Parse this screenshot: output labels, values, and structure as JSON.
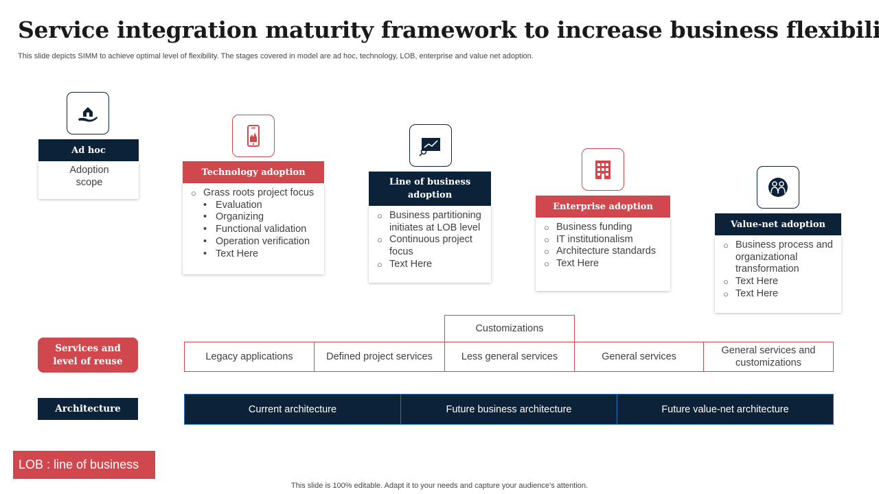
{
  "title": "Service integration maturity framework to increase business flexibility",
  "subtitle": "This slide depicts SIMM to achieve optimal level of flexibility. The stages covered in model are ad hoc, technology, LOB, enterprise and value net adoption.",
  "colors": {
    "navy": "#0b2239",
    "red": "#d0484e",
    "text": "#404040"
  },
  "stages": [
    {
      "icon": "hand-house-icon",
      "header": "Ad hoc",
      "lines": [
        "Adoption",
        "scope"
      ]
    },
    {
      "icon": "smartphone-icon",
      "header": "Technology adoption",
      "items": [
        {
          "text": "Grass roots project focus",
          "sub": [
            "Evaluation",
            "Organizing",
            "Functional validation",
            "Operation verification",
            "Text Here"
          ]
        }
      ]
    },
    {
      "icon": "presentation-chart-icon",
      "header": "Line of business adoption",
      "items": [
        {
          "text": "Business partitioning initiates at LOB level"
        },
        {
          "text": "Continuous project focus"
        },
        {
          "text": "Text Here"
        }
      ]
    },
    {
      "icon": "office-building-icon",
      "header": "Enterprise adoption",
      "items": [
        {
          "text": "Business funding"
        },
        {
          "text": "IT institutionalism"
        },
        {
          "text": "Architecture standards"
        },
        {
          "text": "Text Here"
        }
      ]
    },
    {
      "icon": "team-circle-icon",
      "header": "Value-net adoption",
      "items": [
        {
          "text": "Business process and organizational transformation"
        },
        {
          "text": "Text Here"
        },
        {
          "text": "Text Here"
        }
      ]
    }
  ],
  "services": {
    "label": "Services and level of reuse",
    "top_extra": "Customizations",
    "boxes": [
      "Legacy applications",
      "Defined project services",
      "Less general services",
      "General services",
      "General services and customizations"
    ]
  },
  "architecture": {
    "label": "Architecture",
    "segments": [
      "Current architecture",
      "Future business architecture",
      "Future value-net architecture"
    ]
  },
  "legend": {
    "lob": "LOB : line of business"
  },
  "footer": "This slide is 100% editable. Adapt it to your needs and capture your audience’s attention."
}
